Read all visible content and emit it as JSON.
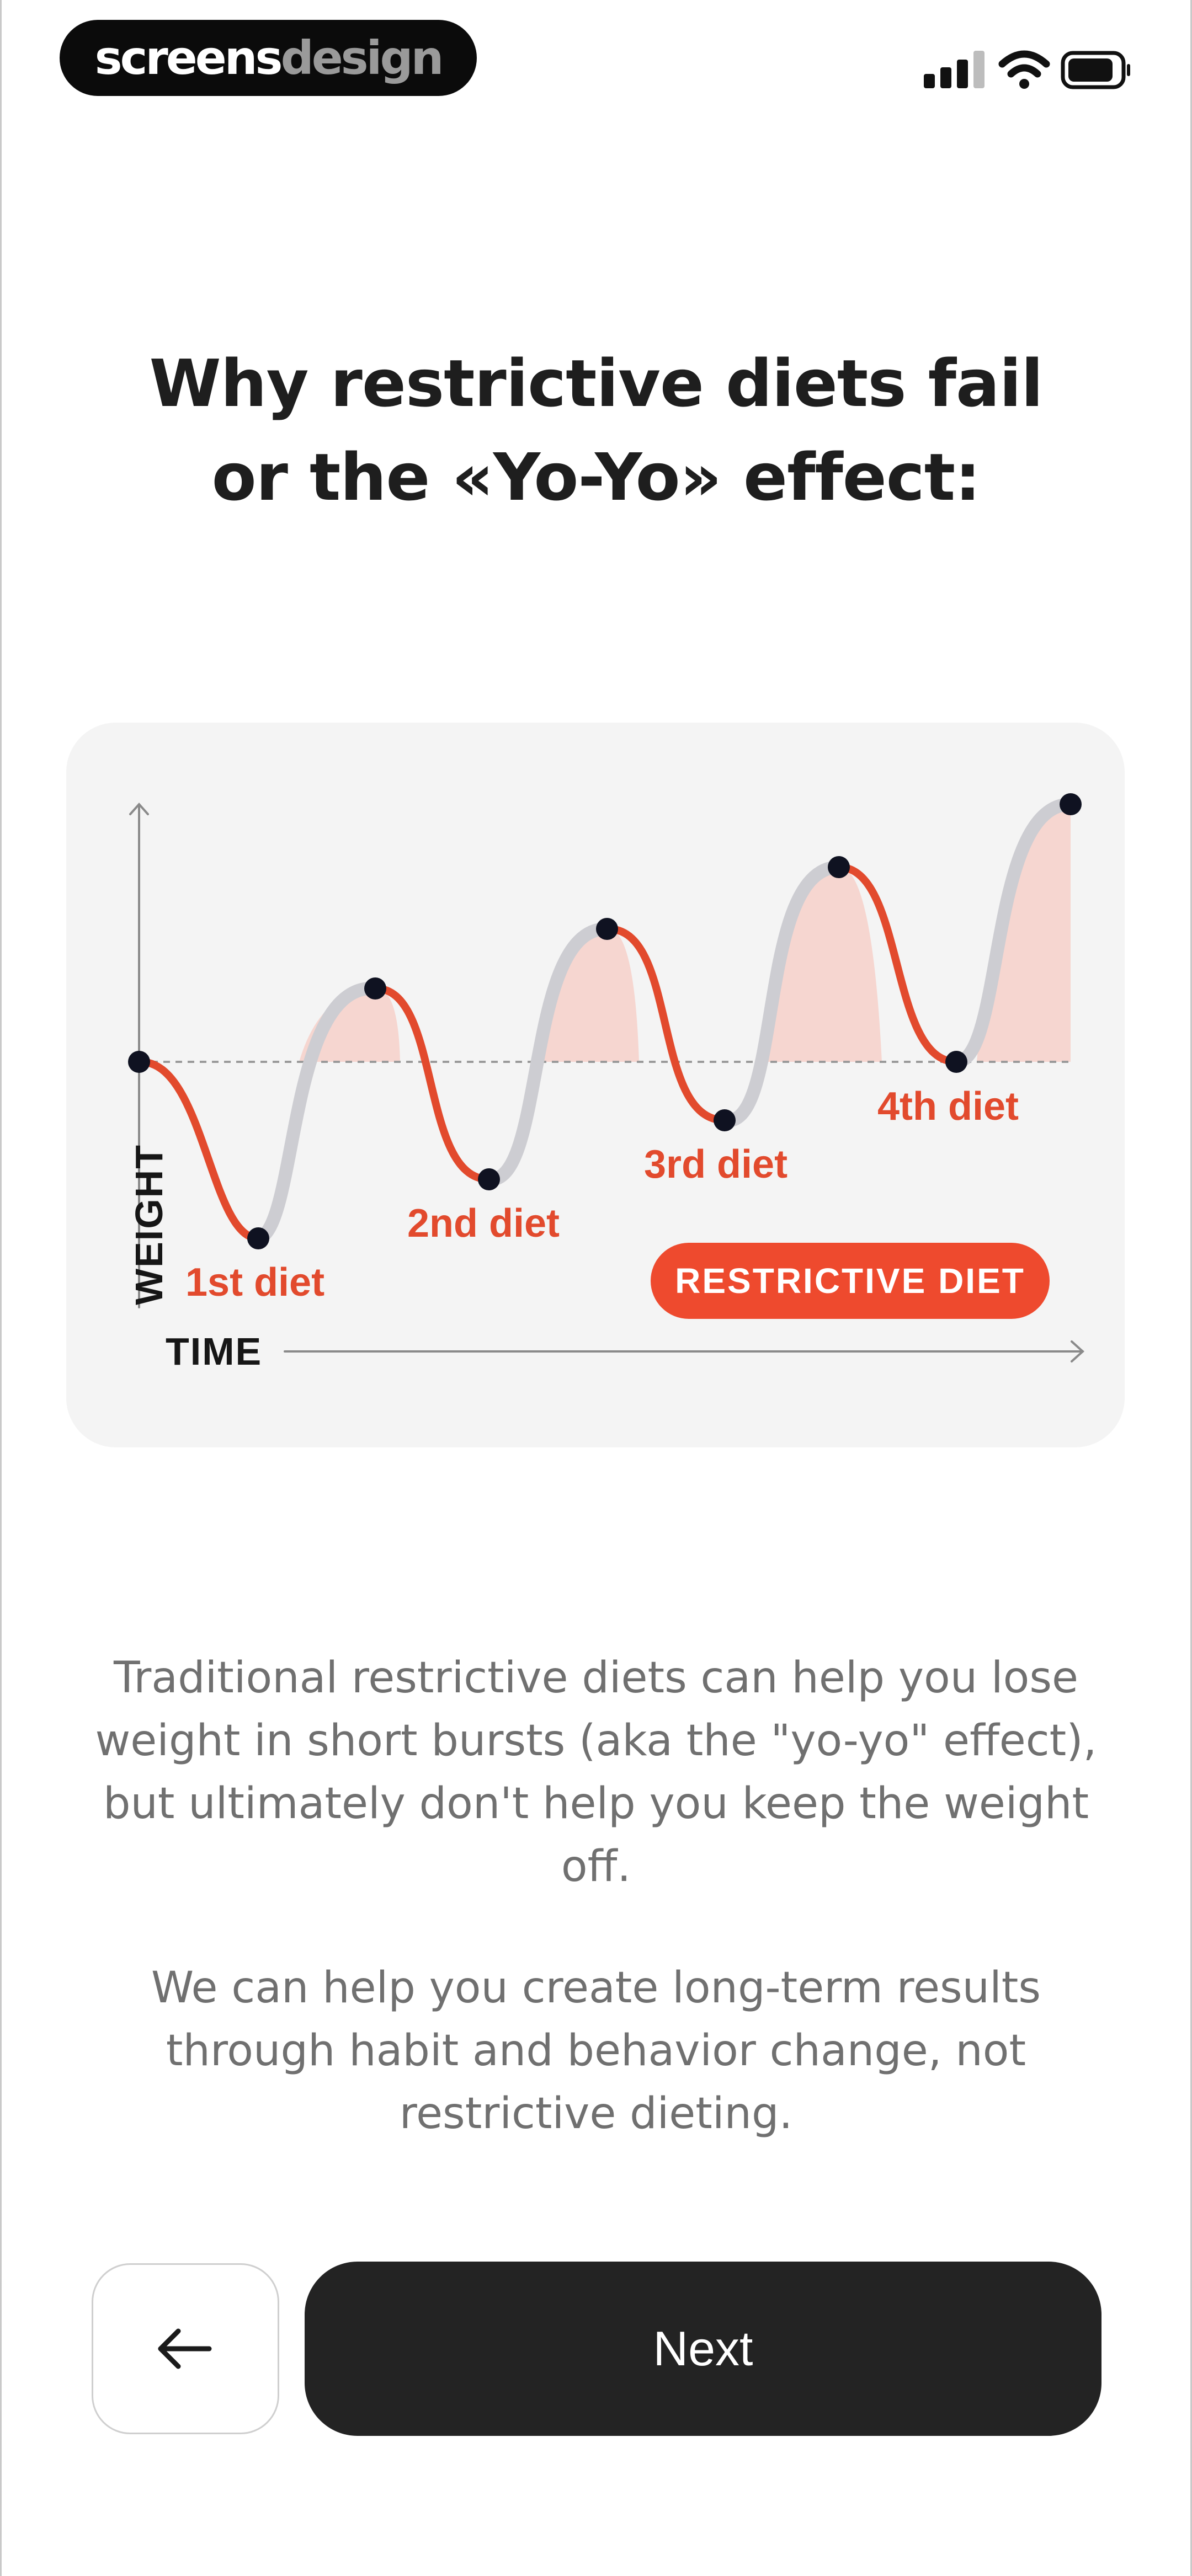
{
  "status_bar": {
    "brand_part1": "screens",
    "brand_part2": "design",
    "icons": [
      "signal-icon",
      "wifi-icon",
      "battery-icon"
    ]
  },
  "title": {
    "line1": "Why restrictive diets fail",
    "line2": "or the «Yo-Yo» effect:"
  },
  "chart": {
    "y_axis_label": "WEIGHT",
    "x_axis_label": "TIME",
    "diet_labels": [
      "1st diet",
      "2nd diet",
      "3rd diet",
      "4th diet"
    ],
    "badge": "RESTRICTIVE DIET",
    "colors": {
      "diet": "#e24a2d",
      "rebound": "#cdcdd2",
      "fill": "#f6d6d0",
      "point": "#0f1221"
    }
  },
  "body": {
    "paragraph1": "Traditional restrictive diets can help you lose weight in short bursts (aka the \"yo-yo\" effect), but ultimately don't help you keep the weight off.",
    "paragraph2": "We can help you create long-term results through habit and behavior change, not restrictive dieting."
  },
  "nav": {
    "back_icon": "arrow-left-icon",
    "next_label": "Next"
  }
}
